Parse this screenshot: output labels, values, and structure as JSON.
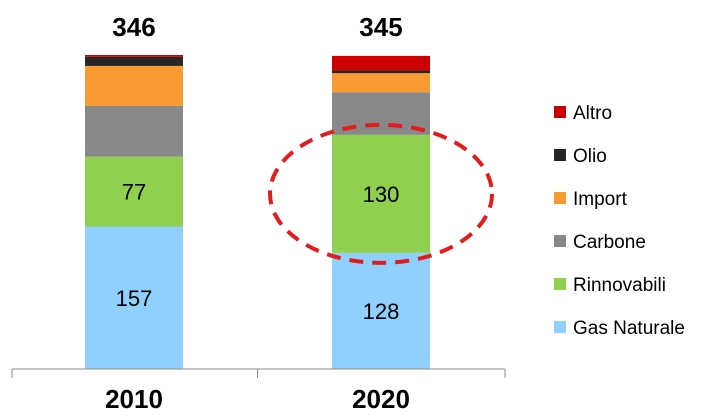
{
  "chart_data": {
    "type": "bar",
    "stacked": true,
    "categories": [
      "2010",
      "2020"
    ],
    "totals": [
      "346",
      "345"
    ],
    "ylim": [
      0,
      346
    ],
    "series": [
      {
        "name": "Gas Naturale",
        "color": "#8fd0ff",
        "values": [
          157,
          128
        ],
        "labels": [
          "157",
          "128"
        ]
      },
      {
        "name": "Rinnovabili",
        "color": "#8fd14f",
        "values": [
          77,
          130
        ],
        "labels": [
          "77",
          "130"
        ]
      },
      {
        "name": "Carbone",
        "color": "#888888",
        "values": [
          56,
          47
        ],
        "labels": [
          "",
          ""
        ]
      },
      {
        "name": "Import",
        "color": "#f99a33",
        "values": [
          44,
          21
        ],
        "labels": [
          "",
          ""
        ]
      },
      {
        "name": "Olio",
        "color": "#262626",
        "values": [
          10,
          3
        ],
        "labels": [
          "",
          ""
        ]
      },
      {
        "name": "Altro",
        "color": "#cc0000",
        "values": [
          2,
          16
        ],
        "labels": [
          "",
          ""
        ]
      }
    ],
    "legend": {
      "placement": "right",
      "order": [
        "Altro",
        "Olio",
        "Import",
        "Carbone",
        "Rinnovabili",
        "Gas Naturale"
      ]
    },
    "annotation": {
      "type": "dashed-ellipse",
      "color": "#e31b1b",
      "category": "2020",
      "series": "Rinnovabili"
    },
    "grid": false
  }
}
